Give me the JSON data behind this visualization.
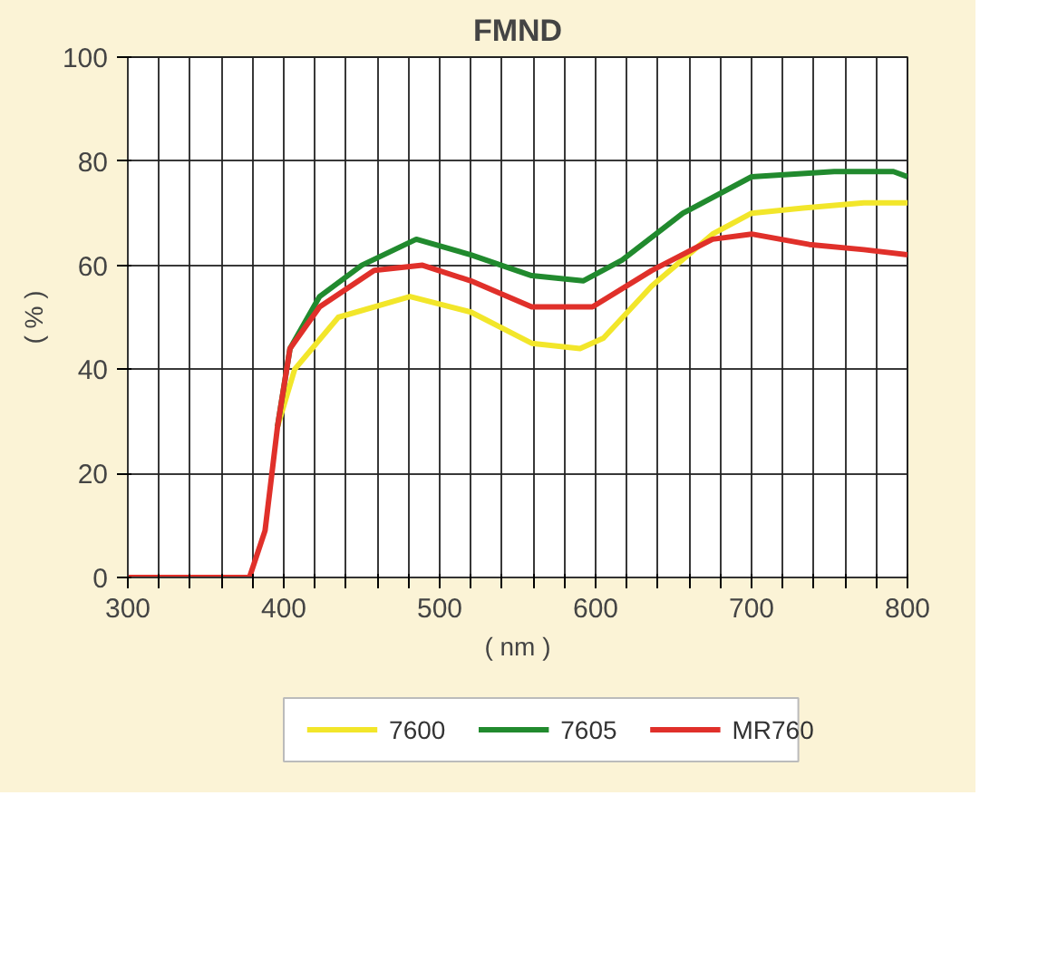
{
  "chart_data": {
    "type": "line",
    "title": "FMND",
    "xlabel": "( nm )",
    "ylabel": "( % )",
    "xlim": [
      300,
      800
    ],
    "ylim": [
      0,
      100
    ],
    "xticks": [
      300,
      {
        "value": 320,
        "label": null
      },
      {
        "value": 340,
        "label": null
      },
      {
        "value": 360,
        "label": null
      },
      {
        "value": 380,
        "label": null
      },
      400,
      {
        "value": 420,
        "label": null
      },
      {
        "value": 440,
        "label": null
      },
      {
        "value": 460,
        "label": null
      },
      {
        "value": 480,
        "label": null
      },
      500,
      {
        "value": 520,
        "label": null
      },
      {
        "value": 540,
        "label": null
      },
      {
        "value": 560,
        "label": null
      },
      {
        "value": 580,
        "label": null
      },
      600,
      {
        "value": 620,
        "label": null
      },
      {
        "value": 640,
        "label": null
      },
      {
        "value": 660,
        "label": null
      },
      {
        "value": 680,
        "label": null
      },
      700,
      {
        "value": 720,
        "label": null
      },
      {
        "value": 740,
        "label": null
      },
      {
        "value": 760,
        "label": null
      },
      {
        "value": 780,
        "label": null
      },
      800
    ],
    "yticks": [
      0,
      20,
      40,
      60,
      80,
      100
    ],
    "grid": true,
    "legend": "bottom",
    "marker": "none",
    "line_style": "solid",
    "series": [
      {
        "name": "7600",
        "color": "#f2e62a",
        "x": [
          396,
          407,
          435,
          481,
          520,
          559,
          590,
          605,
          636,
          675,
          700,
          733,
          772,
          800
        ],
        "values": [
          29,
          40,
          50,
          54,
          51,
          45,
          44,
          46,
          56,
          66,
          70,
          71,
          72,
          72
        ]
      },
      {
        "name": "7605",
        "color": "#218a2e",
        "x": [
          396,
          404,
          423,
          450,
          485,
          520,
          559,
          592,
          617,
          656,
          700,
          753,
          791,
          800
        ],
        "values": [
          29,
          44,
          54,
          60,
          65,
          62,
          58,
          57,
          61,
          70,
          77,
          78,
          78,
          77
        ]
      },
      {
        "name": "MR760",
        "color": "#e0302a",
        "x": [
          300,
          378,
          388,
          396,
          404,
          423,
          458,
          489,
          520,
          559,
          598,
          636,
          675,
          700,
          737,
          772,
          800
        ],
        "values": [
          0,
          0,
          9,
          29,
          44,
          52,
          59,
          60,
          57,
          52,
          52,
          59,
          65,
          66,
          64,
          63,
          62
        ]
      }
    ]
  }
}
